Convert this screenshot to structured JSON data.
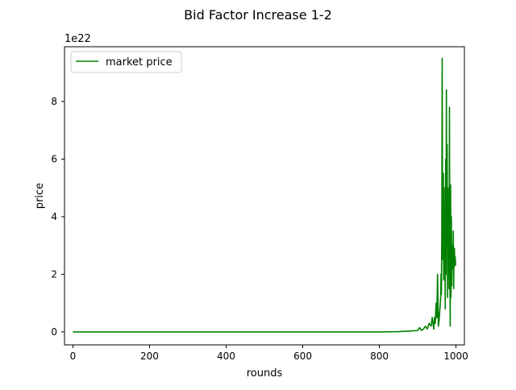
{
  "chart_data": {
    "type": "line",
    "title": "Bid Factor Increase 1-2",
    "xlabel": "rounds",
    "ylabel": "price",
    "y_offset_label": "1e22",
    "xlim": [
      -22,
      1022
    ],
    "ylim": [
      -0.45,
      9.9
    ],
    "x_ticks": [
      0,
      200,
      400,
      600,
      800,
      1000
    ],
    "y_ticks": [
      0,
      2,
      4,
      6,
      8
    ],
    "x_tick_labels": [
      "0",
      "200",
      "400",
      "600",
      "800",
      "1000"
    ],
    "y_tick_labels": [
      "0",
      "2",
      "4",
      "6",
      "8"
    ],
    "grid": false,
    "legend": {
      "position": "top-left",
      "entries": [
        "market price"
      ]
    },
    "series": [
      {
        "name": "market price",
        "color": "#008000",
        "x": [
          0,
          200,
          400,
          600,
          800,
          850,
          880,
          900,
          905,
          910,
          915,
          920,
          925,
          930,
          935,
          938,
          940,
          942,
          944,
          946,
          948,
          950,
          952,
          954,
          956,
          958,
          960,
          961,
          962,
          963,
          964,
          965,
          966,
          967,
          968,
          969,
          970,
          971,
          972,
          973,
          974,
          975,
          976,
          977,
          978,
          979,
          980,
          981,
          982,
          983,
          984,
          985,
          986,
          987,
          988,
          989,
          990,
          991,
          992,
          993,
          994,
          995,
          996,
          997,
          998,
          999
        ],
        "values": [
          0,
          0,
          0,
          0,
          0,
          0.01,
          0.03,
          0.05,
          0.15,
          0.05,
          0.1,
          0.2,
          0.1,
          0.3,
          0.2,
          0.5,
          0.3,
          0.1,
          0.5,
          0.3,
          1.0,
          0.5,
          2.0,
          0.2,
          0.4,
          0.8,
          1.2,
          2.0,
          1.3,
          3.5,
          9.5,
          4.0,
          2.5,
          5.5,
          1.8,
          5.0,
          2.2,
          4.0,
          0.8,
          6.0,
          2.0,
          8.4,
          3.0,
          6.5,
          1.2,
          5.0,
          2.0,
          4.5,
          1.5,
          7.8,
          2.5,
          0.2,
          5.1,
          1.2,
          4.0,
          1.6,
          3.0,
          2.5,
          2.2,
          3.5,
          1.5,
          2.8,
          2.9,
          2.3,
          2.6,
          2.3
        ]
      }
    ]
  }
}
